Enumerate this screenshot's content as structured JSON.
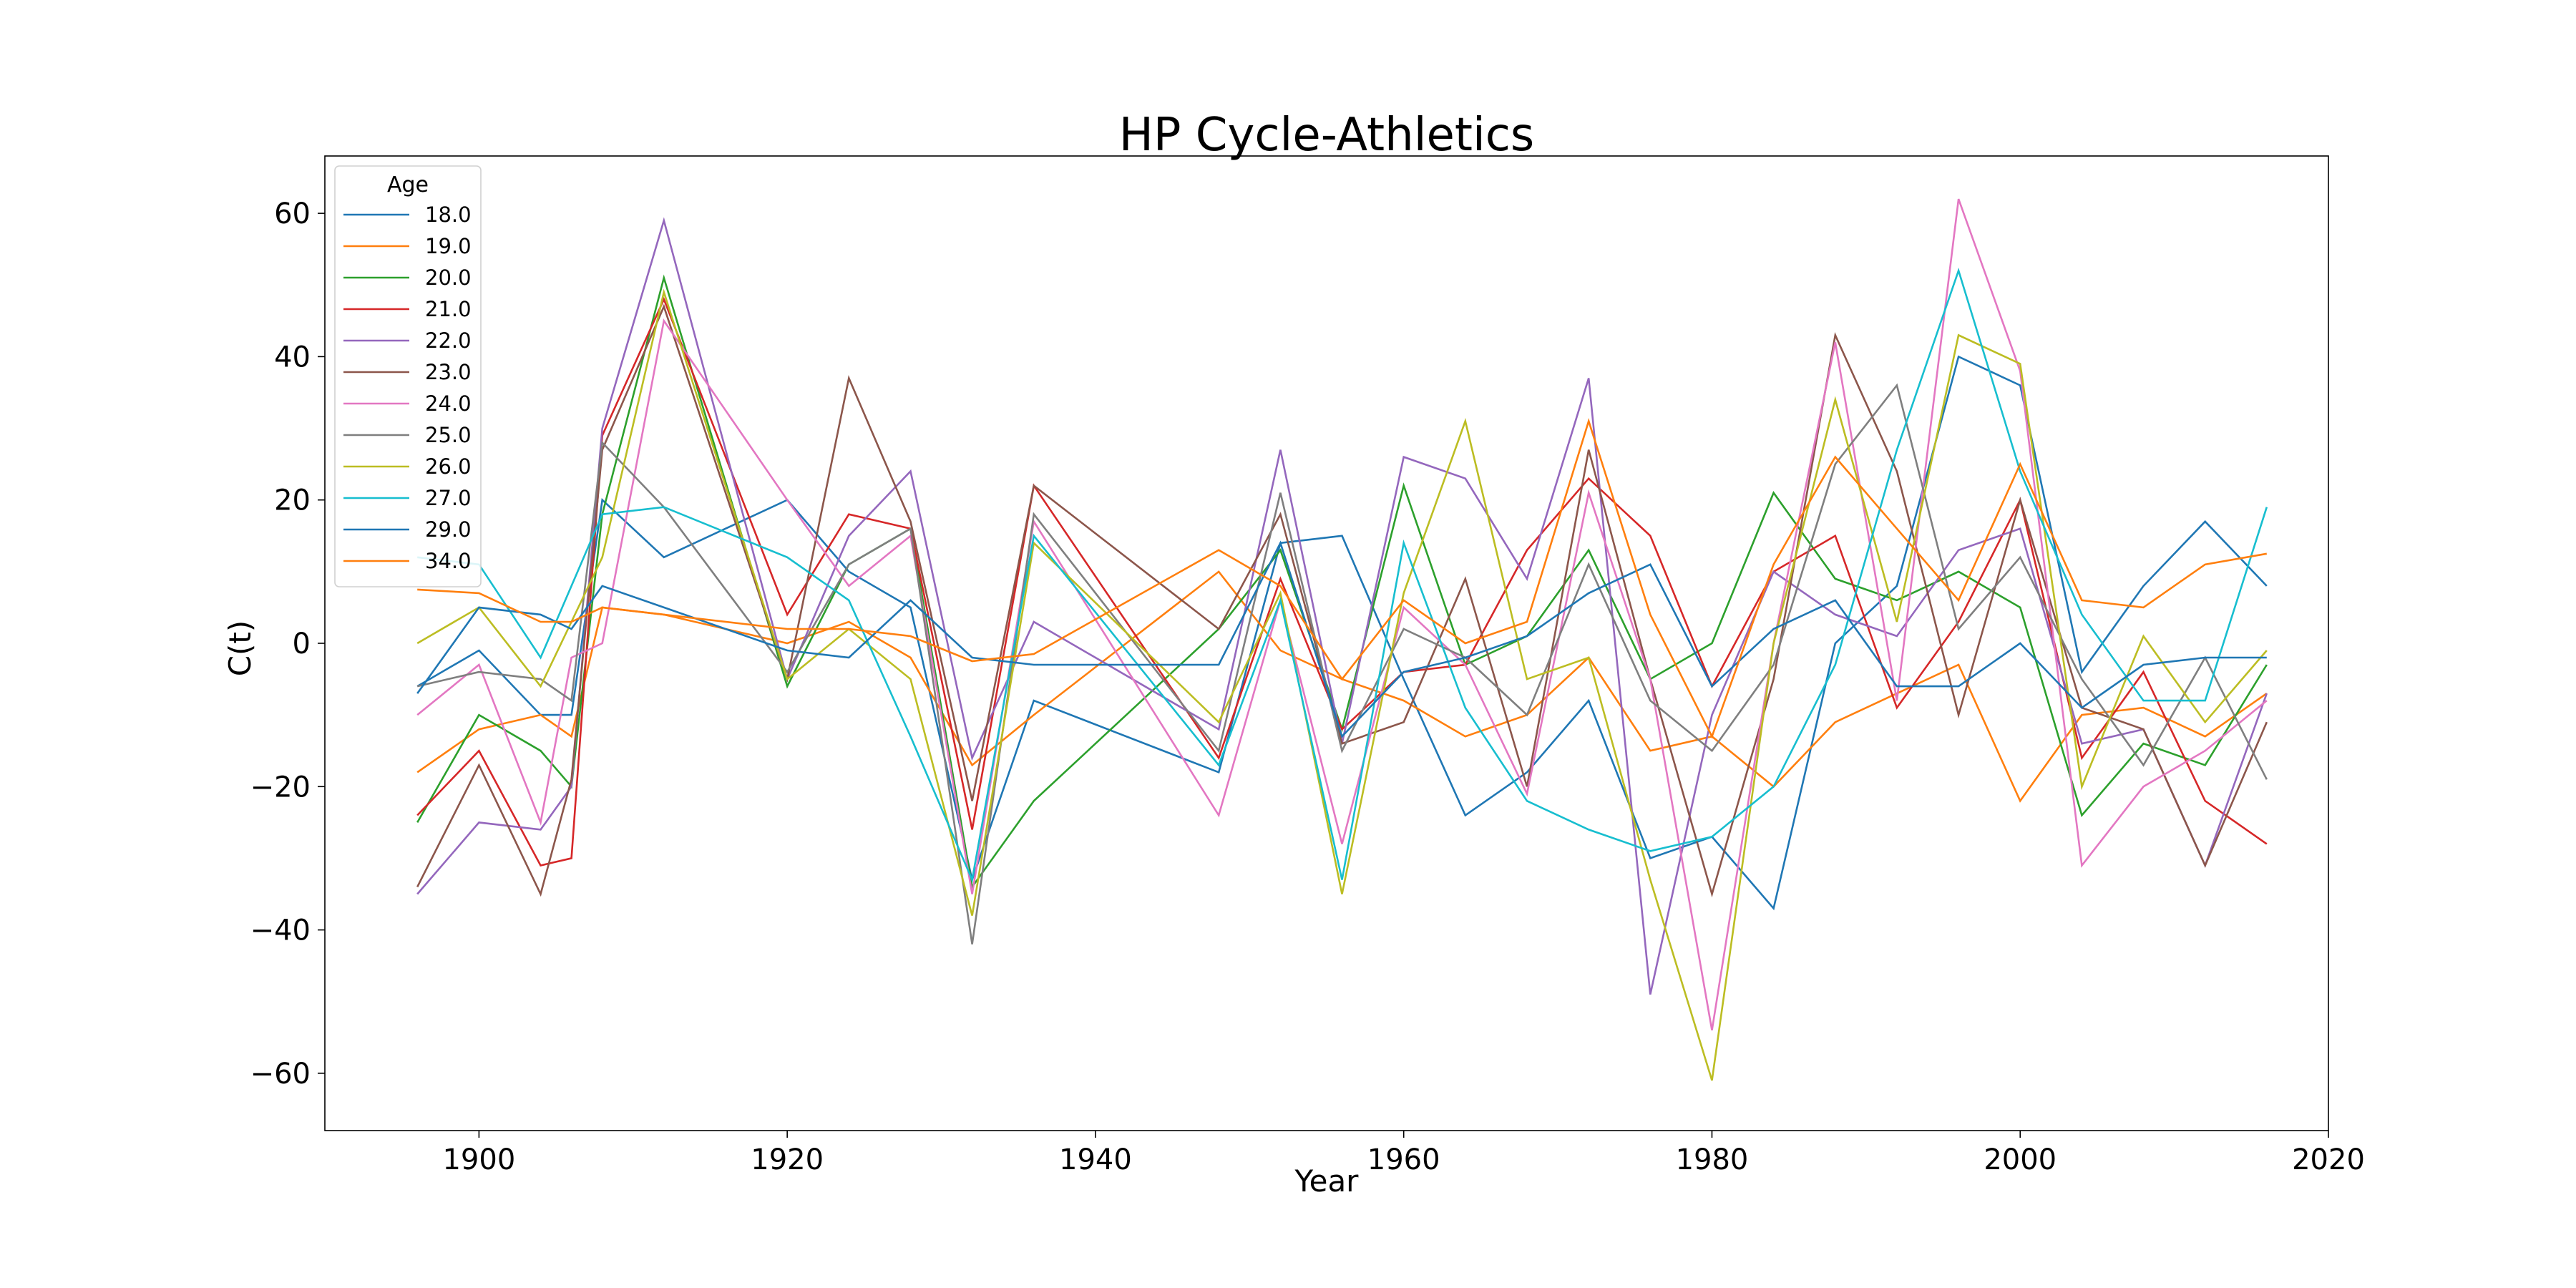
{
  "chart_data": {
    "type": "line",
    "title": "HP Cycle-Athletics",
    "xlabel": "Year",
    "ylabel": "C(t)",
    "xlim": [
      1890,
      2020
    ],
    "ylim": [
      -68,
      68
    ],
    "xticks": [
      1900,
      1920,
      1940,
      1960,
      1980,
      2000,
      2020
    ],
    "yticks": [
      60,
      40,
      20,
      0,
      -20,
      -40,
      -60
    ],
    "xtick_labels": [
      "1900",
      "1920",
      "1940",
      "1960",
      "1980",
      "2000",
      "2020"
    ],
    "ytick_labels": [
      "60",
      "40",
      "20",
      "0",
      "−20",
      "−40",
      "−60"
    ],
    "grid": false,
    "legend_title": "Age",
    "legend_position": "upper-left",
    "series": [
      {
        "name": "18.0",
        "color": "#1f77b4",
        "x": [
          1896,
          1900,
          1904,
          1906,
          1908,
          1912,
          1920,
          1924,
          1928,
          1932,
          1936,
          1948,
          1952,
          1956,
          1960,
          1964,
          1968,
          1972,
          1976,
          1980,
          1984,
          1988,
          1992,
          1996,
          2000,
          2004,
          2008,
          2012,
          2016
        ],
        "y": [
          -6,
          -1,
          -10,
          -10,
          20,
          12,
          20,
          10,
          5,
          -33,
          -8,
          -18,
          14,
          15,
          -5,
          -24,
          -18,
          -8,
          -30,
          -27,
          -37,
          0,
          8,
          40,
          36,
          -4,
          8,
          17,
          8
        ]
      },
      {
        "name": "19.0",
        "color": "#ff7f0e",
        "x": [
          1896,
          1900,
          1904,
          1906,
          1908,
          1912,
          1920,
          1924,
          1928,
          1932,
          1936,
          1948,
          1952,
          1956,
          1960,
          1964,
          1968,
          1972,
          1976,
          1980,
          1984,
          1988,
          1992,
          1996,
          2000,
          2004,
          2008,
          2012,
          2016
        ],
        "y": [
          -18,
          -12,
          -10,
          -13,
          5,
          4,
          0,
          3,
          -2,
          -17,
          -10,
          10,
          -1,
          -5,
          -8,
          -13,
          -10,
          -2,
          -15,
          -13,
          -20,
          -11,
          -7,
          -3,
          -22,
          -10,
          -9,
          -13,
          -7
        ]
      },
      {
        "name": "20.0",
        "color": "#2ca02c",
        "x": [
          1896,
          1900,
          1904,
          1906,
          1908,
          1912,
          1920,
          1924,
          1928,
          1932,
          1936,
          1948,
          1952,
          1956,
          1960,
          1964,
          1968,
          1972,
          1976,
          1980,
          1984,
          1988,
          1992,
          1996,
          2000,
          2004,
          2008,
          2012,
          2016
        ],
        "y": [
          -25,
          -10,
          -15,
          -20,
          18,
          51,
          -6,
          11,
          16,
          -34,
          -22,
          2,
          13,
          -12,
          22,
          -3,
          1,
          13,
          -5,
          0,
          21,
          9,
          6,
          10,
          5,
          -24,
          -14,
          -17,
          -3
        ]
      },
      {
        "name": "21.0",
        "color": "#d62728",
        "x": [
          1896,
          1900,
          1904,
          1906,
          1908,
          1912,
          1920,
          1924,
          1928,
          1932,
          1936,
          1948,
          1952,
          1956,
          1960,
          1964,
          1968,
          1972,
          1976,
          1980,
          1984,
          1988,
          1992,
          1996,
          2000,
          2004,
          2008,
          2012,
          2016
        ],
        "y": [
          -24,
          -15,
          -31,
          -30,
          29,
          48,
          4,
          18,
          16,
          -26,
          22,
          -16,
          9,
          -12,
          -4,
          -3,
          13,
          23,
          15,
          -6,
          10,
          15,
          -9,
          3,
          20,
          -16,
          -4,
          -22,
          -28
        ]
      },
      {
        "name": "22.0",
        "color": "#9467bd",
        "x": [
          1896,
          1900,
          1904,
          1906,
          1908,
          1912,
          1920,
          1924,
          1928,
          1932,
          1936,
          1948,
          1952,
          1956,
          1960,
          1964,
          1968,
          1972,
          1976,
          1980,
          1984,
          1988,
          1992,
          1996,
          2000,
          2004,
          2008,
          2012,
          2016
        ],
        "y": [
          -35,
          -25,
          -26,
          -20,
          30,
          59,
          -5,
          15,
          24,
          -16,
          3,
          -12,
          27,
          -14,
          26,
          23,
          9,
          37,
          -49,
          -10,
          10,
          4,
          1,
          13,
          16,
          -14,
          -12,
          -31,
          -7
        ]
      },
      {
        "name": "23.0",
        "color": "#8c564b",
        "x": [
          1896,
          1900,
          1904,
          1906,
          1908,
          1912,
          1920,
          1924,
          1928,
          1932,
          1936,
          1948,
          1952,
          1956,
          1960,
          1964,
          1968,
          1972,
          1976,
          1980,
          1984,
          1988,
          1992,
          1996,
          2000,
          2004,
          2008,
          2012,
          2016
        ],
        "y": [
          -34,
          -17,
          -35,
          -19,
          27,
          47,
          -5,
          37,
          17,
          -22,
          22,
          2,
          18,
          -14,
          -11,
          9,
          -20,
          27,
          -5,
          -35,
          -5,
          43,
          24,
          -10,
          20,
          -9,
          -12,
          -31,
          -11
        ]
      },
      {
        "name": "24.0",
        "color": "#e377c2",
        "x": [
          1896,
          1900,
          1904,
          1906,
          1908,
          1912,
          1920,
          1924,
          1928,
          1932,
          1936,
          1948,
          1952,
          1956,
          1960,
          1964,
          1968,
          1972,
          1976,
          1980,
          1984,
          1988,
          1992,
          1996,
          2000,
          2004,
          2008,
          2012,
          2016
        ],
        "y": [
          -10,
          -3,
          -25,
          -2,
          0,
          45,
          20,
          8,
          15,
          -35,
          17,
          -24,
          6,
          -28,
          5,
          -3,
          -21,
          21,
          -5,
          -54,
          0,
          42,
          -8,
          62,
          38,
          -31,
          -20,
          -15,
          -8
        ]
      },
      {
        "name": "25.0",
        "color": "#7f7f7f",
        "x": [
          1896,
          1900,
          1904,
          1906,
          1908,
          1912,
          1920,
          1924,
          1928,
          1932,
          1936,
          1948,
          1952,
          1956,
          1960,
          1964,
          1968,
          1972,
          1976,
          1980,
          1984,
          1988,
          1992,
          1996,
          2000,
          2004,
          2008,
          2012,
          2016
        ],
        "y": [
          -6,
          -4,
          -5,
          -8,
          28,
          19,
          -4,
          11,
          16,
          -42,
          18,
          -15,
          21,
          -15,
          2,
          -2,
          -10,
          11,
          -8,
          -15,
          -3,
          25,
          36,
          2,
          12,
          -5,
          -17,
          -2,
          -19
        ]
      },
      {
        "name": "26.0",
        "color": "#bcbd22",
        "x": [
          1896,
          1900,
          1904,
          1906,
          1908,
          1912,
          1920,
          1924,
          1928,
          1932,
          1936,
          1948,
          1952,
          1956,
          1960,
          1964,
          1968,
          1972,
          1976,
          1980,
          1984,
          1988,
          1992,
          1996,
          2000,
          2004,
          2008,
          2012,
          2016
        ],
        "y": [
          0,
          5,
          -6,
          3,
          12,
          49,
          -5,
          2,
          -5,
          -38,
          14,
          -11,
          7,
          -35,
          7,
          31,
          -5,
          -2,
          -33,
          -61,
          0,
          34,
          3,
          43,
          39,
          -20,
          1,
          -11,
          -1
        ]
      },
      {
        "name": "27.0",
        "color": "#17becf",
        "x": [
          1896,
          1900,
          1904,
          1906,
          1908,
          1912,
          1920,
          1924,
          1928,
          1932,
          1936,
          1948,
          1952,
          1956,
          1960,
          1964,
          1968,
          1972,
          1976,
          1980,
          1984,
          1988,
          1992,
          1996,
          2000,
          2004,
          2008,
          2012,
          2016
        ],
        "y": [
          12,
          11,
          -2,
          8,
          18,
          19,
          12,
          6,
          -13,
          -33,
          15,
          -17,
          6,
          -33,
          14,
          -9,
          -22,
          -26,
          -29,
          -27,
          -20,
          -3,
          27,
          52,
          24,
          4,
          -8,
          -8,
          19
        ]
      },
      {
        "name": "29.0",
        "color": "#1f77b4",
        "x": [
          1896,
          1900,
          1904,
          1906,
          1908,
          1912,
          1920,
          1924,
          1928,
          1932,
          1936,
          1948,
          1952,
          1956,
          1960,
          1964,
          1968,
          1972,
          1976,
          1980,
          1984,
          1988,
          1992,
          1996,
          2000,
          2004,
          2008,
          2012,
          2016
        ],
        "y": [
          -7,
          5,
          4,
          2,
          8,
          5,
          -1,
          -2,
          6,
          -2,
          -3,
          -3,
          14,
          -13,
          -4,
          -2,
          1,
          7,
          11,
          -6,
          2,
          6,
          -6,
          -6,
          0,
          -9,
          -3,
          -2,
          -2
        ]
      },
      {
        "name": "34.0",
        "color": "#ff7f0e",
        "x": [
          1896,
          1900,
          1904,
          1906,
          1908,
          1912,
          1920,
          1924,
          1928,
          1932,
          1936,
          1948,
          1952,
          1956,
          1960,
          1964,
          1968,
          1972,
          1976,
          1980,
          1984,
          1988,
          1992,
          1996,
          2000,
          2004,
          2008,
          2012,
          2016
        ],
        "y": [
          7.5,
          7,
          3,
          3,
          5,
          4,
          2,
          2,
          1,
          -2.5,
          -1.5,
          13,
          8,
          -5,
          6,
          0,
          3,
          31,
          4,
          -13,
          11,
          26,
          16,
          6,
          25,
          6,
          5,
          11,
          12.5
        ]
      }
    ]
  }
}
